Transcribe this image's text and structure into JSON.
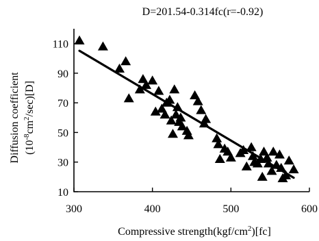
{
  "chart_data": {
    "type": "scatter",
    "title": "D=201.54-0.314fc(r=-0.92)",
    "xlabel": {
      "main": "Compressive strength(kgf/cm",
      "sup": "2",
      "tail": ")[fc]"
    },
    "ylabel": {
      "line1": "Diffusion coefficient",
      "line2_a": "(10",
      "line2_sup1": "-8",
      "line2_b": "cm",
      "line2_sup2": "2",
      "line2_c": "/sec)[D]"
    },
    "xlim": [
      300,
      600
    ],
    "ylim": [
      10,
      120
    ],
    "xticks": [
      "300",
      "400",
      "500",
      "600"
    ],
    "yticks": [
      "10",
      "30",
      "50",
      "70",
      "90",
      "110"
    ],
    "grid": false,
    "marker": "filled-triangle",
    "regression": {
      "intercept": 201.54,
      "slope": -0.314,
      "x_range": [
        307,
        580
      ]
    },
    "points": [
      {
        "x": 307,
        "y": 112
      },
      {
        "x": 337,
        "y": 108
      },
      {
        "x": 358,
        "y": 93
      },
      {
        "x": 366,
        "y": 98
      },
      {
        "x": 370,
        "y": 73
      },
      {
        "x": 384,
        "y": 79
      },
      {
        "x": 388,
        "y": 86
      },
      {
        "x": 392,
        "y": 82
      },
      {
        "x": 400,
        "y": 85
      },
      {
        "x": 404,
        "y": 64
      },
      {
        "x": 408,
        "y": 78
      },
      {
        "x": 412,
        "y": 66
      },
      {
        "x": 416,
        "y": 62
      },
      {
        "x": 418,
        "y": 70
      },
      {
        "x": 422,
        "y": 72
      },
      {
        "x": 424,
        "y": 58
      },
      {
        "x": 426,
        "y": 49
      },
      {
        "x": 428,
        "y": 79
      },
      {
        "x": 430,
        "y": 62
      },
      {
        "x": 432,
        "y": 67
      },
      {
        "x": 434,
        "y": 57
      },
      {
        "x": 436,
        "y": 60
      },
      {
        "x": 438,
        "y": 54
      },
      {
        "x": 444,
        "y": 51
      },
      {
        "x": 446,
        "y": 48
      },
      {
        "x": 454,
        "y": 75
      },
      {
        "x": 458,
        "y": 71
      },
      {
        "x": 462,
        "y": 65
      },
      {
        "x": 466,
        "y": 56
      },
      {
        "x": 468,
        "y": 59
      },
      {
        "x": 482,
        "y": 46
      },
      {
        "x": 484,
        "y": 42
      },
      {
        "x": 486,
        "y": 32
      },
      {
        "x": 492,
        "y": 39
      },
      {
        "x": 496,
        "y": 37
      },
      {
        "x": 500,
        "y": 33
      },
      {
        "x": 512,
        "y": 36
      },
      {
        "x": 516,
        "y": 38
      },
      {
        "x": 520,
        "y": 27
      },
      {
        "x": 526,
        "y": 40
      },
      {
        "x": 528,
        "y": 34
      },
      {
        "x": 530,
        "y": 30
      },
      {
        "x": 534,
        "y": 29
      },
      {
        "x": 538,
        "y": 32
      },
      {
        "x": 540,
        "y": 20
      },
      {
        "x": 542,
        "y": 37
      },
      {
        "x": 546,
        "y": 33
      },
      {
        "x": 548,
        "y": 29
      },
      {
        "x": 552,
        "y": 24
      },
      {
        "x": 554,
        "y": 37
      },
      {
        "x": 558,
        "y": 28
      },
      {
        "x": 562,
        "y": 35
      },
      {
        "x": 564,
        "y": 26
      },
      {
        "x": 566,
        "y": 19
      },
      {
        "x": 570,
        "y": 21
      },
      {
        "x": 574,
        "y": 31
      },
      {
        "x": 580,
        "y": 25
      }
    ]
  }
}
